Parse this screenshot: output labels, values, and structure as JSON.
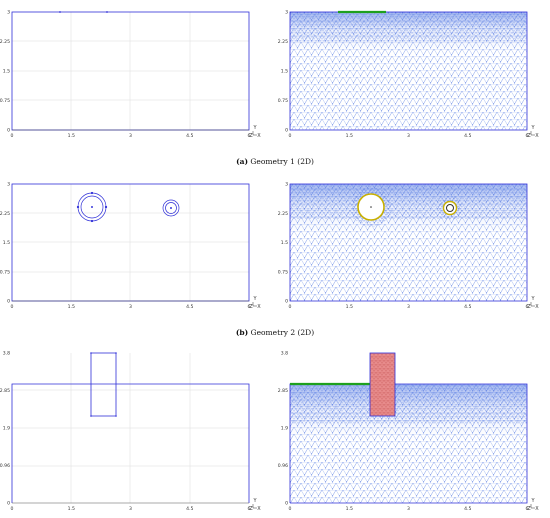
{
  "captions": {
    "a": {
      "label": "(a)",
      "text": "Geometry 1 (2D)"
    },
    "b": {
      "label": "(b)",
      "text": "Geometry 2 (2D)"
    }
  },
  "panels": {
    "row1": {
      "y_ticks": [
        "0",
        "0.75",
        "1.5",
        "2.25",
        "3"
      ],
      "x_ticks": [
        "0",
        "1.5",
        "3",
        "4.5",
        "6"
      ]
    },
    "row2": {
      "y_ticks": [
        "0",
        "0.75",
        "1.5",
        "2.25",
        "3"
      ],
      "x_ticks": [
        "0",
        "1.5",
        "3",
        "4.5",
        "6"
      ]
    },
    "row3": {
      "y_ticks": [
        "0",
        "0.96",
        "1.9",
        "2.85",
        "3.8"
      ],
      "x_ticks": [
        "0",
        "1.5",
        "3",
        "4.5",
        "6"
      ]
    }
  },
  "axis_glyphs": {
    "y": "Y",
    "z": "Z",
    "x": "X"
  },
  "colors": {
    "outline": "#2f2fd8",
    "mesh": "#6f8fe6",
    "grid": "#d7d7d7",
    "boundary_green": "#1ea01e",
    "circle_yellow": "#c9b000",
    "wall_fill": "#e68a8a"
  }
}
